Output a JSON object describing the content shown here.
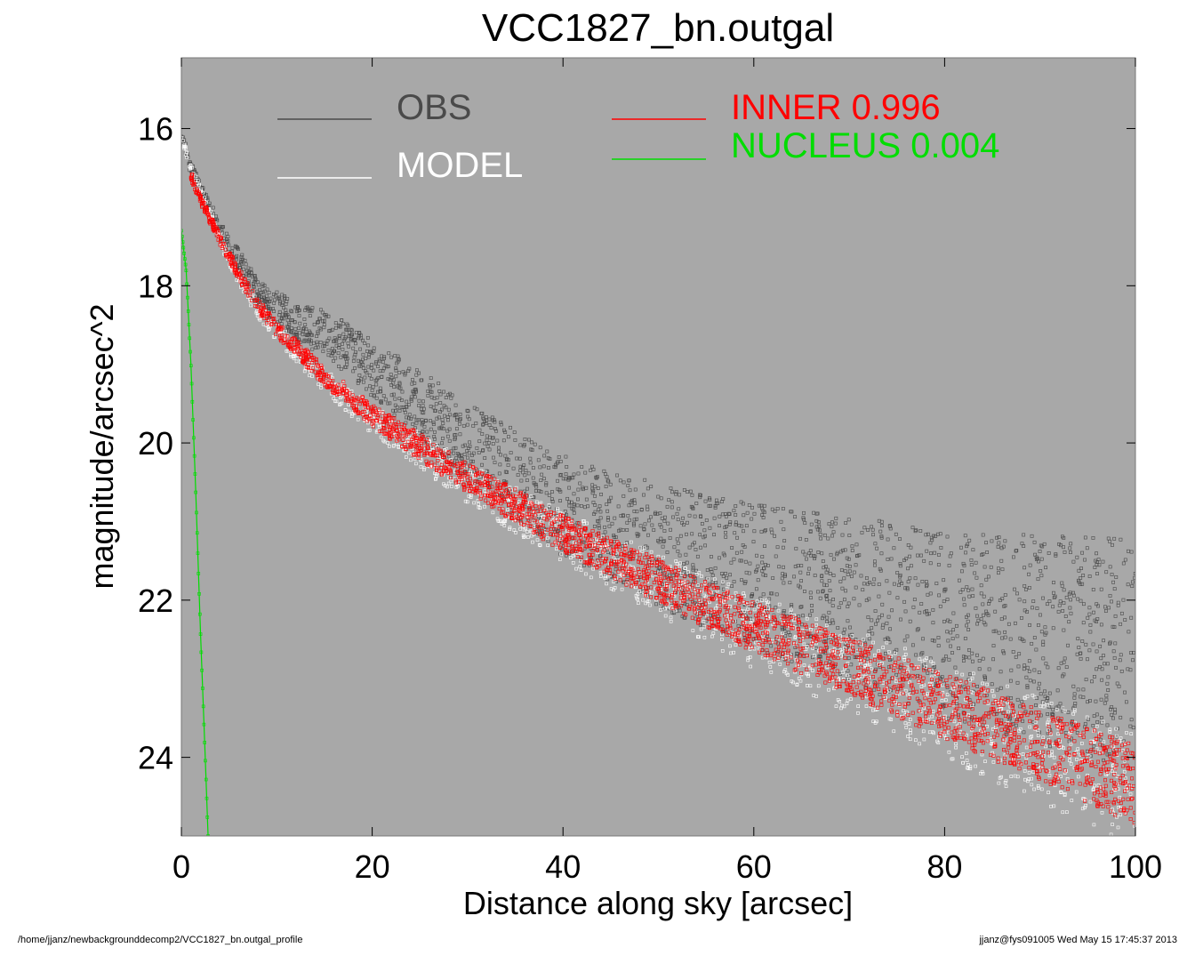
{
  "chart_data": {
    "type": "scatter",
    "title": "VCC1827_bn.outgal",
    "xlabel": "Distance along sky [arcsec]",
    "ylabel": "magnitude/arcsec^2",
    "xlim": [
      0,
      100
    ],
    "ylim": [
      25.0,
      15.1
    ],
    "y_inverted": true,
    "xticks": [
      "0",
      "20",
      "40",
      "60",
      "80",
      "100"
    ],
    "yticks": [
      "16",
      "18",
      "20",
      "22",
      "24"
    ],
    "background_color": "#a8a8a8",
    "grid": false,
    "legend": [
      {
        "label": "OBS",
        "color": "#4a4a4a"
      },
      {
        "label": "MODEL",
        "color": "#ffffff"
      },
      {
        "label": "INNER  0.996",
        "color": "#ff0000"
      },
      {
        "label": "NUCLEUS  0.004",
        "color": "#00dd00"
      }
    ],
    "series": [
      {
        "name": "OBS",
        "color": "#4a4a4a",
        "x": [
          0,
          1,
          2,
          4,
          6,
          8,
          10,
          12,
          15,
          18,
          20,
          25,
          30,
          40,
          50,
          60,
          70,
          80,
          90,
          100
        ],
        "y": [
          16.1,
          16.5,
          16.8,
          17.3,
          17.7,
          18.1,
          18.3,
          18.45,
          18.6,
          18.85,
          19.05,
          19.5,
          20.0,
          20.8,
          21.3,
          21.7,
          22.0,
          22.3,
          22.5,
          22.7
        ]
      },
      {
        "name": "MODEL",
        "color": "#ffffff",
        "x": [
          0,
          1,
          2,
          4,
          6,
          8,
          10,
          15,
          20,
          25,
          30,
          40,
          50,
          60,
          70,
          80,
          90,
          100
        ],
        "y": [
          16.1,
          16.5,
          16.8,
          17.4,
          17.9,
          18.3,
          18.6,
          19.2,
          19.7,
          20.1,
          20.5,
          21.2,
          21.8,
          22.4,
          22.9,
          23.4,
          23.9,
          24.4
        ]
      },
      {
        "name": "INNER  0.996",
        "color": "#ff0000",
        "x": [
          1,
          2,
          4,
          6,
          8,
          10,
          15,
          20,
          25,
          30,
          40,
          50,
          60,
          70,
          80,
          90,
          100
        ],
        "y": [
          16.6,
          16.9,
          17.4,
          17.85,
          18.25,
          18.55,
          19.15,
          19.65,
          20.05,
          20.45,
          21.15,
          21.75,
          22.35,
          22.85,
          23.35,
          23.85,
          24.35
        ]
      },
      {
        "name": "NUCLEUS  0.004",
        "color": "#00dd00",
        "x": [
          0.0,
          0.5,
          1.0,
          1.5,
          2.0,
          2.5,
          2.8
        ],
        "y": [
          17.3,
          17.8,
          19.0,
          20.6,
          22.4,
          24.0,
          25.0
        ]
      }
    ]
  },
  "footer": {
    "left": "/home/jjanz/newbackgrounddecomp2/VCC1827_bn.outgal_profile",
    "right": "jjanz@fys091005  Wed May 15 17:45:37 2013"
  }
}
